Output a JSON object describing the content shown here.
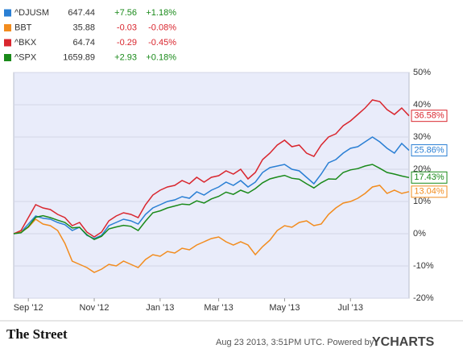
{
  "chart_data": {
    "type": "line",
    "categories": [
      null,
      null,
      "Sep '12",
      null,
      null,
      null,
      null,
      null,
      null,
      null,
      null,
      "Nov '12",
      null,
      null,
      null,
      null,
      null,
      null,
      null,
      null,
      "Jan '13",
      null,
      null,
      null,
      null,
      null,
      null,
      null,
      "Mar '13",
      null,
      null,
      null,
      null,
      null,
      null,
      null,
      null,
      "May '13",
      null,
      null,
      null,
      null,
      null,
      null,
      null,
      null,
      "Jul '13",
      null,
      null,
      null,
      null,
      null,
      null,
      null,
      null
    ],
    "series": [
      {
        "name": "^DJUSM",
        "price": 647.44,
        "change": "+7.56",
        "change_pct": "+1.18%",
        "change_color": "#1a8a1a",
        "color": "#2a7fd4",
        "end_label": "25.86%",
        "values": [
          0,
          0.5,
          3.0,
          5.5,
          4.8,
          4.5,
          3.5,
          2.8,
          1.0,
          2.0,
          -0.5,
          -1.5,
          -0.5,
          2.5,
          3.5,
          4.5,
          4.0,
          3.0,
          6.0,
          8.0,
          9.0,
          10.0,
          10.5,
          11.5,
          11.0,
          13.0,
          12.0,
          13.5,
          14.5,
          16.0,
          15.0,
          16.5,
          14.5,
          16.0,
          19.0,
          20.5,
          21.0,
          21.5,
          20.0,
          19.5,
          17.5,
          15.5,
          18.5,
          22.0,
          23.0,
          25.0,
          26.5,
          27.0,
          28.5,
          30.0,
          28.5,
          26.5,
          25.0,
          28.0,
          25.86
        ]
      },
      {
        "name": "BBT",
        "price": 35.88,
        "change": "-0.03",
        "change_pct": "-0.08%",
        "change_color": "#d9262e",
        "color": "#f28c1e",
        "end_label": "13.04%",
        "values": [
          0,
          0.5,
          2.0,
          4.5,
          3.0,
          2.5,
          1.0,
          -3.0,
          -8.5,
          -9.5,
          -10.5,
          -12.0,
          -11.0,
          -9.5,
          -10.0,
          -8.5,
          -9.5,
          -10.5,
          -8.0,
          -6.5,
          -7.0,
          -5.5,
          -6.0,
          -4.5,
          -5.0,
          -3.5,
          -2.5,
          -1.5,
          -1.0,
          -2.5,
          -3.5,
          -2.5,
          -3.5,
          -6.5,
          -4.0,
          -2.0,
          1.0,
          2.5,
          2.0,
          3.5,
          4.0,
          2.5,
          3.0,
          6.0,
          8.0,
          9.5,
          10.0,
          11.0,
          12.5,
          14.5,
          15.0,
          12.5,
          13.5,
          12.5,
          13.04
        ]
      },
      {
        "name": "^BKX",
        "price": 64.74,
        "change": "-0.29",
        "change_pct": "-0.45%",
        "change_color": "#d9262e",
        "color": "#d9262e",
        "end_label": "36.58%",
        "values": [
          0,
          1.0,
          5.0,
          9.0,
          8.0,
          7.5,
          6.0,
          5.0,
          2.5,
          3.5,
          0.5,
          -1.0,
          0.5,
          4.0,
          5.5,
          6.5,
          6.0,
          5.0,
          9.0,
          12.0,
          13.5,
          14.5,
          15.0,
          16.5,
          15.5,
          17.5,
          16.0,
          17.5,
          18.0,
          19.5,
          18.5,
          20.0,
          17.0,
          19.0,
          23.0,
          25.0,
          27.5,
          29.0,
          27.0,
          27.5,
          25.0,
          24.0,
          27.5,
          30.0,
          31.0,
          33.5,
          35.0,
          37.0,
          39.0,
          41.5,
          41.0,
          38.5,
          37.0,
          39.0,
          36.58
        ]
      },
      {
        "name": "^SPX",
        "price": 1659.89,
        "change": "+2.93",
        "change_pct": "+0.18%",
        "change_color": "#1a8a1a",
        "color": "#1a8a1a",
        "end_label": "17.43%",
        "values": [
          0,
          0.3,
          2.2,
          5.1,
          5.6,
          5.0,
          4.2,
          3.5,
          1.8,
          2.0,
          -0.3,
          -1.8,
          -0.8,
          1.5,
          2.1,
          2.6,
          2.3,
          1.0,
          3.9,
          6.5,
          7.1,
          8.0,
          8.6,
          9.2,
          9.0,
          10.2,
          9.5,
          10.8,
          11.6,
          12.9,
          12.2,
          13.5,
          12.6,
          14.0,
          15.8,
          17.0,
          17.6,
          18.1,
          17.2,
          16.9,
          15.5,
          14.2,
          15.8,
          17.0,
          16.9,
          19.0,
          19.8,
          20.2,
          21.0,
          21.5,
          20.3,
          19.0,
          18.5,
          17.9,
          17.43
        ]
      }
    ],
    "ylim": [
      -20,
      50
    ],
    "yticks": [
      {
        "value": -20,
        "label": "-20%"
      },
      {
        "value": -10,
        "label": "-10%"
      },
      {
        "value": 0,
        "label": "0%"
      },
      {
        "value": 10,
        "label": "10%"
      },
      {
        "value": 20,
        "label": "20%"
      },
      {
        "value": 30,
        "label": "30%"
      },
      {
        "value": 40,
        "label": "40%"
      },
      {
        "value": 50,
        "label": "50%"
      }
    ],
    "grid": true
  },
  "footer": {
    "brand": "The Street",
    "timestamp": "Aug 23 2013, 3:51PM UTC.  Powered by",
    "provider": "YCHARTS"
  }
}
